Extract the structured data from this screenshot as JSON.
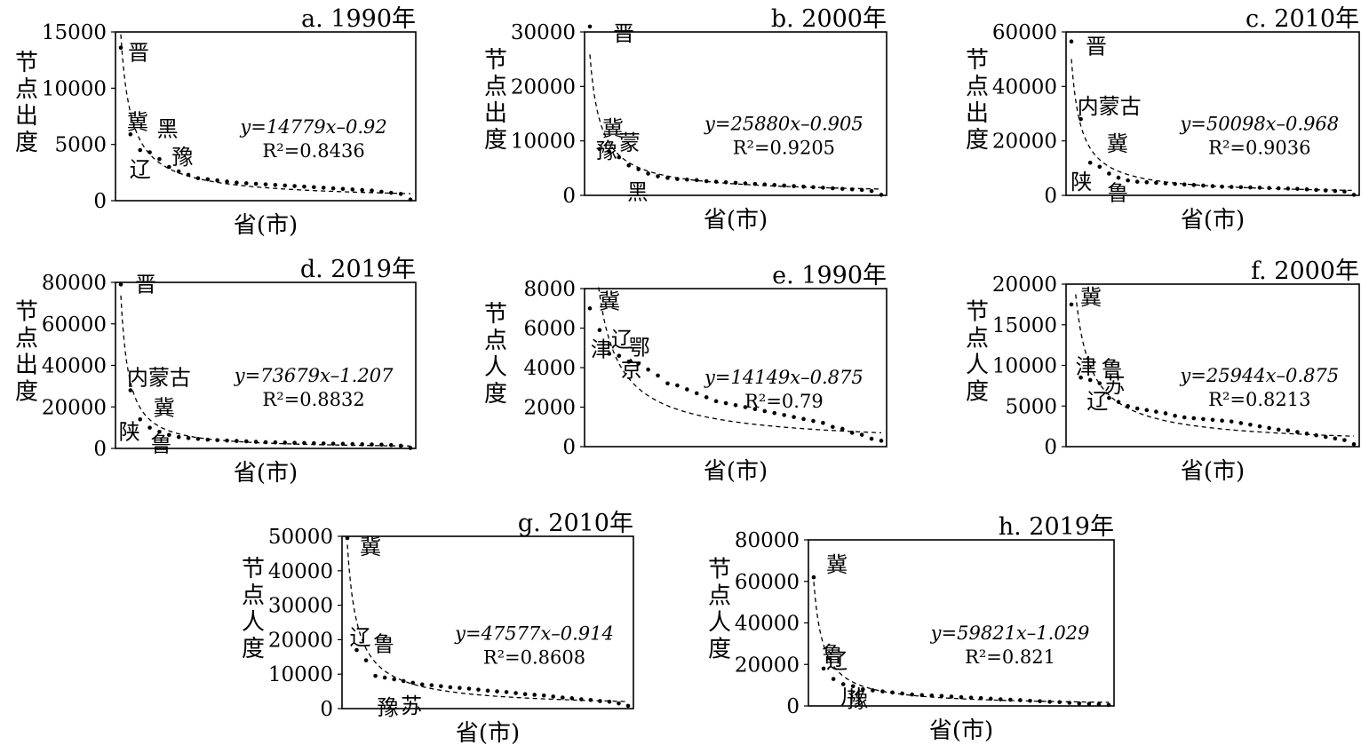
{
  "chart_data": [
    {
      "type": "scatter",
      "title": "a. 1990年",
      "xlabel": "省(市)",
      "ylabel": "节点出度",
      "ylim": [
        0,
        15000
      ],
      "yticks": [
        "0",
        "5000",
        "10000",
        "15000"
      ],
      "equation": "y=14779x–0.92",
      "r2": "R²=0.8436",
      "fit": {
        "a": 14779,
        "b": -0.92
      },
      "x": [
        1,
        2,
        3,
        4,
        5,
        6,
        7,
        8,
        9,
        10,
        11,
        12,
        13,
        14,
        15,
        16,
        17,
        18,
        19,
        20,
        21,
        22,
        23,
        24,
        25,
        26,
        27,
        28,
        29,
        30,
        31
      ],
      "values": [
        13600,
        5900,
        4500,
        4300,
        3700,
        3000,
        2600,
        2300,
        2000,
        1900,
        1800,
        1700,
        1600,
        1550,
        1500,
        1450,
        1400,
        1350,
        1300,
        1250,
        1200,
        1150,
        1100,
        1050,
        1000,
        950,
        900,
        800,
        700,
        600,
        100
      ],
      "point_labels": [
        {
          "text": "晋",
          "x": 1
        },
        {
          "text": "冀",
          "x": 2
        },
        {
          "text": "辽",
          "x": 3
        },
        {
          "text": "黑",
          "x": 4
        },
        {
          "text": "豫",
          "x": 5
        }
      ]
    },
    {
      "type": "scatter",
      "title": "b. 2000年",
      "xlabel": "省(市)",
      "ylabel": "节点出度",
      "ylim": [
        0,
        30000
      ],
      "yticks": [
        "0",
        "10000",
        "20000",
        "30000"
      ],
      "equation": "y=25880x–0.905",
      "r2": "R²=0.9205",
      "fit": {
        "a": 25880,
        "b": -0.905
      },
      "x": [
        1,
        2,
        3,
        4,
        5,
        6,
        7,
        8,
        9,
        10,
        11,
        12,
        13,
        14,
        15,
        16,
        17,
        18,
        19,
        20,
        21,
        22,
        23,
        24,
        25,
        26,
        27,
        28,
        29,
        30,
        31
      ],
      "values": [
        31000,
        8500,
        8000,
        7000,
        5500,
        4800,
        4000,
        3500,
        3200,
        3000,
        2900,
        2800,
        2600,
        2500,
        2400,
        2300,
        2200,
        2100,
        2000,
        1900,
        1800,
        1700,
        1600,
        1500,
        1400,
        1300,
        1200,
        1100,
        1000,
        800,
        100
      ],
      "point_labels": [
        {
          "text": "晋",
          "x": 1
        },
        {
          "text": "豫",
          "x": 2
        },
        {
          "text": "冀",
          "x": 3
        },
        {
          "text": "蒙",
          "x": 4
        },
        {
          "text": "黑",
          "x": 5
        }
      ]
    },
    {
      "type": "scatter",
      "title": "c. 2010年",
      "xlabel": "省(市)",
      "ylabel": "节点出度",
      "ylim": [
        0,
        60000
      ],
      "yticks": [
        "0",
        "20000",
        "40000",
        "60000"
      ],
      "equation": "y=50098x–0.968",
      "r2": "R²=0.9036",
      "fit": {
        "a": 50098,
        "b": -0.968
      },
      "x": [
        1,
        2,
        3,
        4,
        5,
        6,
        7,
        8,
        9,
        10,
        11,
        12,
        13,
        14,
        15,
        16,
        17,
        18,
        19,
        20,
        21,
        22,
        23,
        24,
        25,
        26,
        27,
        28,
        29,
        30,
        31
      ],
      "values": [
        56500,
        28000,
        12000,
        10500,
        8000,
        6500,
        5500,
        5000,
        4800,
        4600,
        4400,
        4200,
        4000,
        3800,
        3600,
        3400,
        3200,
        3100,
        3000,
        2900,
        2800,
        2700,
        2600,
        2500,
        2400,
        2200,
        2000,
        1800,
        1600,
        1400,
        200
      ],
      "point_labels": [
        {
          "text": "晋",
          "x": 1
        },
        {
          "text": "内蒙古",
          "x": 2
        },
        {
          "text": "陕",
          "x": 3
        },
        {
          "text": "冀",
          "x": 4
        },
        {
          "text": "鲁",
          "x": 5
        }
      ]
    },
    {
      "type": "scatter",
      "title": "d. 2019年",
      "xlabel": "省(市)",
      "ylabel": "节点出度",
      "ylim": [
        0,
        80000
      ],
      "yticks": [
        "0",
        "20000",
        "40000",
        "60000",
        "80000"
      ],
      "equation": "y=73679x–1.207",
      "r2": "R²=0.8832",
      "fit": {
        "a": 73679,
        "b": -1.207
      },
      "x": [
        1,
        2,
        3,
        4,
        5,
        6,
        7,
        8,
        9,
        10,
        11,
        12,
        13,
        14,
        15,
        16,
        17,
        18,
        19,
        20,
        21,
        22,
        23,
        24,
        25,
        26,
        27,
        28,
        29,
        30,
        31
      ],
      "values": [
        79000,
        28000,
        14000,
        10000,
        8000,
        6500,
        5500,
        5000,
        4600,
        4200,
        4000,
        3800,
        3600,
        3400,
        3200,
        3000,
        2900,
        2800,
        2700,
        2600,
        2500,
        2400,
        2300,
        2200,
        2100,
        2000,
        1900,
        1800,
        1600,
        1300,
        200
      ],
      "point_labels": [
        {
          "text": "晋",
          "x": 1
        },
        {
          "text": "内蒙古",
          "x": 2
        },
        {
          "text": "陕",
          "x": 3
        },
        {
          "text": "冀",
          "x": 4
        },
        {
          "text": "鲁",
          "x": 5
        }
      ]
    },
    {
      "type": "scatter",
      "title": "e. 1990年",
      "xlabel": "省(市)",
      "ylabel": "节点人度",
      "ylim": [
        0,
        8000
      ],
      "yticks": [
        "0",
        "2000",
        "4000",
        "6000",
        "8000"
      ],
      "equation": "y=14149x–0.875",
      "r2": "R²=0.79",
      "fit": {
        "a": 14149,
        "b": -0.875
      },
      "x": [
        1,
        2,
        3,
        4,
        5,
        6,
        7,
        8,
        9,
        10,
        11,
        12,
        13,
        14,
        15,
        16,
        17,
        18,
        19,
        20,
        21,
        22,
        23,
        24,
        25,
        26,
        27,
        28,
        29,
        30,
        31
      ],
      "values": [
        7000,
        5900,
        4700,
        4600,
        4300,
        4200,
        3900,
        3600,
        3200,
        3100,
        2900,
        2700,
        2500,
        2300,
        2200,
        2100,
        2000,
        1900,
        1800,
        1700,
        1600,
        1500,
        1400,
        1300,
        1200,
        1000,
        900,
        700,
        600,
        400,
        300
      ],
      "point_labels": [
        {
          "text": "冀",
          "x": 1
        },
        {
          "text": "津",
          "x": 2
        },
        {
          "text": "辽",
          "x": 3
        },
        {
          "text": "京",
          "x": 4
        },
        {
          "text": "鄂",
          "x": 5
        }
      ]
    },
    {
      "type": "scatter",
      "title": "f. 2000年",
      "xlabel": "省(市)",
      "ylabel": "节点人度",
      "ylim": [
        0,
        20000
      ],
      "yticks": [
        "0",
        "5000",
        "10000",
        "15000",
        "20000"
      ],
      "equation": "y=25944x–0.875",
      "r2": "R²=0.8213",
      "fit": {
        "a": 25944,
        "b": -0.875
      },
      "x": [
        1,
        2,
        3,
        4,
        5,
        6,
        7,
        8,
        9,
        10,
        11,
        12,
        13,
        14,
        15,
        16,
        17,
        18,
        19,
        20,
        21,
        22,
        23,
        24,
        25,
        26,
        27,
        28,
        29,
        30,
        31
      ],
      "values": [
        17500,
        8500,
        8200,
        7800,
        6000,
        5500,
        5000,
        4700,
        4500,
        4300,
        4100,
        3800,
        3600,
        3500,
        3400,
        3300,
        3200,
        3100,
        2900,
        2700,
        2500,
        2300,
        2100,
        2000,
        1800,
        1600,
        1400,
        1200,
        1000,
        800,
        300
      ],
      "point_labels": [
        {
          "text": "冀",
          "x": 1
        },
        {
          "text": "津",
          "x": 2
        },
        {
          "text": "辽",
          "x": 3
        },
        {
          "text": "鲁",
          "x": 4
        },
        {
          "text": "苏",
          "x": 5
        }
      ]
    },
    {
      "type": "scatter",
      "title": "g. 2010年",
      "xlabel": "省(市)",
      "ylabel": "节点人度",
      "ylim": [
        0,
        50000
      ],
      "yticks": [
        "0",
        "10000",
        "20000",
        "30000",
        "40000",
        "50000"
      ],
      "equation": "y=47577x–0.914",
      "r2": "R²=0.8608",
      "fit": {
        "a": 47577,
        "b": -0.914
      },
      "x": [
        1,
        2,
        3,
        4,
        5,
        6,
        7,
        8,
        9,
        10,
        11,
        12,
        13,
        14,
        15,
        16,
        17,
        18,
        19,
        20,
        21,
        22,
        23,
        24,
        25,
        26,
        27,
        28,
        29,
        30,
        31
      ],
      "values": [
        49500,
        17000,
        14000,
        9500,
        9000,
        8500,
        8000,
        7500,
        7000,
        6800,
        6500,
        6200,
        6000,
        5800,
        5500,
        5200,
        5000,
        4800,
        4500,
        4200,
        4000,
        3800,
        3500,
        3200,
        3000,
        2700,
        2500,
        2200,
        2000,
        1500,
        800
      ],
      "point_labels": [
        {
          "text": "冀",
          "x": 1
        },
        {
          "text": "辽",
          "x": 2
        },
        {
          "text": "鲁",
          "x": 3
        },
        {
          "text": "豫",
          "x": 4
        },
        {
          "text": "苏",
          "x": 5
        }
      ]
    },
    {
      "type": "scatter",
      "title": "h. 2019年",
      "xlabel": "省(市)",
      "ylabel": "节点人度",
      "ylim": [
        0,
        80000
      ],
      "yticks": [
        "0",
        "20000",
        "40000",
        "60000",
        "80000"
      ],
      "equation": "y=59821x–1.029",
      "r2": "R²=0.821",
      "fit": {
        "a": 59821,
        "b": -1.029
      },
      "x": [
        1,
        2,
        3,
        4,
        5,
        6,
        7,
        8,
        9,
        10,
        11,
        12,
        13,
        14,
        15,
        16,
        17,
        18,
        19,
        20,
        21,
        22,
        23,
        24,
        25,
        26,
        27,
        28,
        29,
        30,
        31
      ],
      "values": [
        62000,
        18000,
        13000,
        10500,
        9500,
        8000,
        7500,
        7000,
        6500,
        6000,
        5500,
        5200,
        5000,
        4800,
        4500,
        4200,
        4000,
        3800,
        3500,
        3200,
        3000,
        2800,
        2500,
        2300,
        2000,
        1800,
        1500,
        1200,
        1000,
        800,
        500
      ],
      "point_labels": [
        {
          "text": "冀",
          "x": 1
        },
        {
          "text": "鲁",
          "x": 2
        },
        {
          "text": "辽",
          "x": 3
        },
        {
          "text": "豫",
          "x": 4
        },
        {
          "text": "川",
          "x": 5
        }
      ]
    }
  ]
}
